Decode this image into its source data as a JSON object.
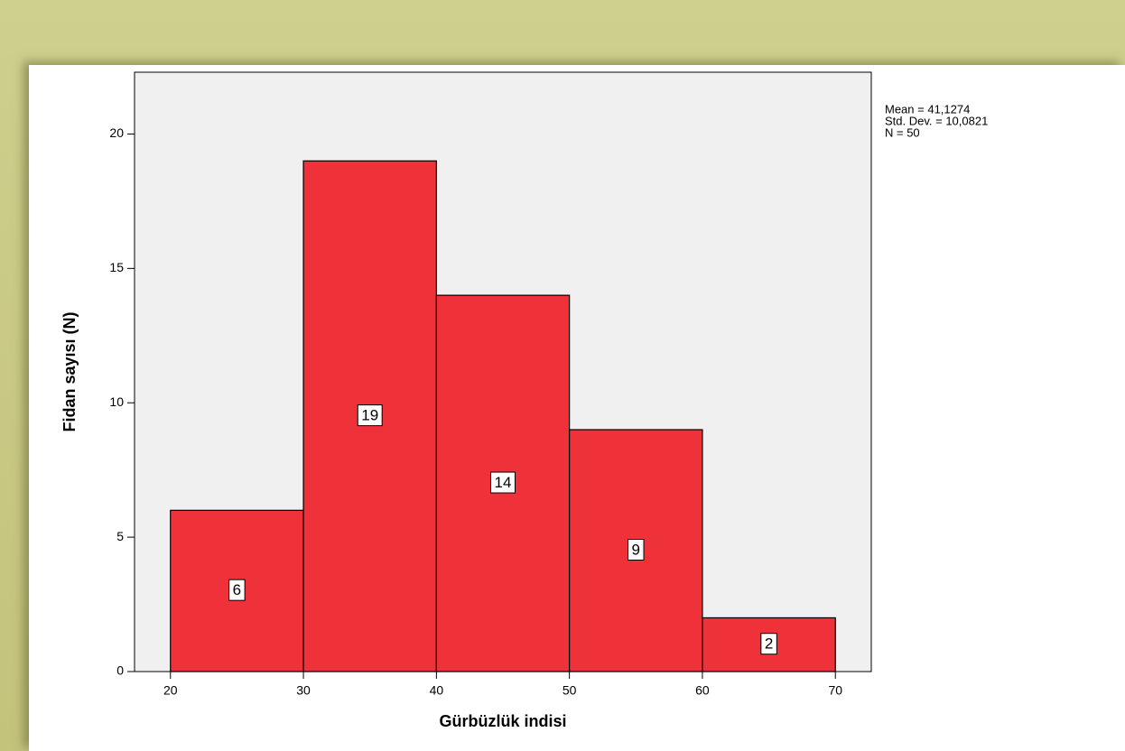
{
  "chart_data": {
    "type": "histogram",
    "x_label": "Gürbüzlük indisi",
    "y_label": "Fidan sayısı (N)",
    "annotations": [
      "Mean = 41,1274",
      "Std. Dev. = 10,0821",
      "N = 50"
    ],
    "bins": [
      20,
      30,
      40,
      50,
      60,
      70
    ],
    "counts": [
      6,
      19,
      14,
      9,
      2
    ],
    "color": "#ef323a",
    "xlim": [
      17.3,
      72.7
    ],
    "xticks": [
      20,
      30,
      40,
      50,
      60,
      70
    ],
    "ylim": [
      0,
      22.3
    ],
    "yticks": [
      0,
      5,
      10,
      15,
      20
    ]
  }
}
